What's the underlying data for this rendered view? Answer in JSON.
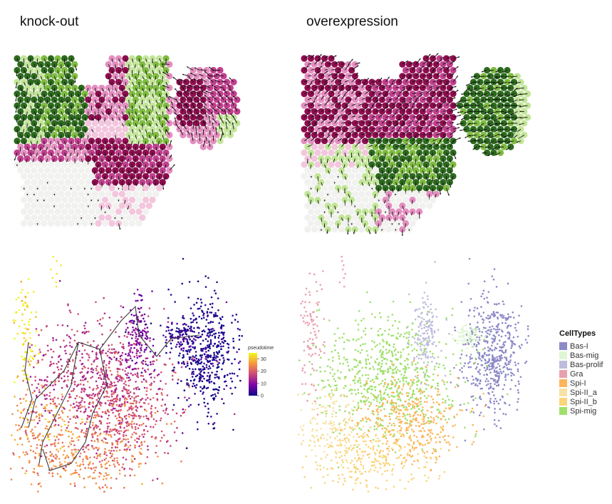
{
  "panels": {
    "knockout_title": "knock-out",
    "overexpression_title": "overexpression"
  },
  "colors": {
    "pink_light": "#f3c6dd",
    "pink": "#e38fbf",
    "magenta": "#c1408e",
    "dark_magenta": "#8e0d4f",
    "green_light": "#c3e59a",
    "green": "#7fbc41",
    "dark_green": "#2d6a1e",
    "pale": "#f1f1ef",
    "arrow": "#111111",
    "trajectory": "#3a3a3a"
  },
  "chart_data": [
    {
      "type": "scatter",
      "title": "knock-out",
      "description_kind": "spatial spot field with velocity arrows"
    },
    {
      "type": "scatter",
      "title": "overexpression",
      "description_kind": "spatial spot field with velocity arrows"
    },
    {
      "type": "scatter",
      "title": "",
      "colorbar": {
        "title": "pseudotime",
        "ticks": [
          0,
          10,
          20,
          30
        ],
        "range": [
          0,
          35
        ],
        "colors": [
          "#0d0887",
          "#7e03a8",
          "#cc4778",
          "#f89540",
          "#f0f921"
        ]
      }
    },
    {
      "type": "scatter",
      "title": "",
      "legend": {
        "title": "CellTypes",
        "position": "right",
        "entries": [
          {
            "label": "Bas-I",
            "color": "#8c89c7"
          },
          {
            "label": "Bas-mig",
            "color": "#def6d3"
          },
          {
            "label": "Bas-prolif",
            "color": "#bebcdc"
          },
          {
            "label": "Gra",
            "color": "#e9a0ae"
          },
          {
            "label": "Spi-I",
            "color": "#fcb55a"
          },
          {
            "label": "Spi-II_a",
            "color": "#f6e2a6"
          },
          {
            "label": "Spi-II_b",
            "color": "#fad57a"
          },
          {
            "label": "Spi-mig",
            "color": "#9fe06a"
          }
        ]
      }
    }
  ]
}
